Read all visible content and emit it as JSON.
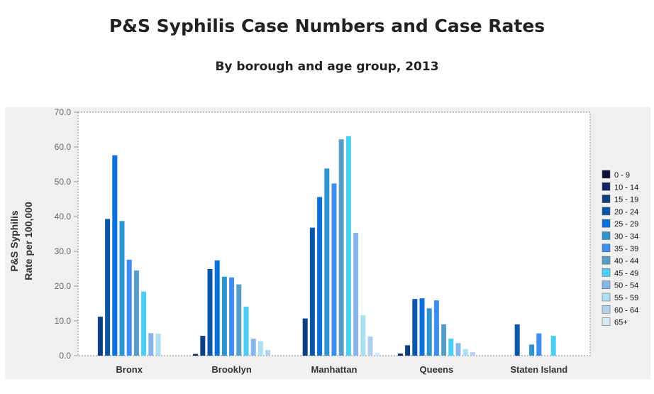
{
  "title": "P&S Syphilis Case Numbers and Case Rates",
  "subtitle": "By borough and age group, 2013",
  "chart_data": {
    "type": "bar",
    "title": "P&S Syphilis Case Numbers and Case Rates",
    "subtitle": "By borough and age group, 2013",
    "xlabel": "",
    "ylabel_lines": [
      "P&S Syphilis",
      "Rate per 100,000"
    ],
    "ylim": [
      0,
      70
    ],
    "yticks": [
      "0.0",
      "10.0",
      "20.0",
      "30.0",
      "40.0",
      "50.0",
      "60.0",
      "70.0"
    ],
    "grid": false,
    "legend_position": "right",
    "categories": [
      "Bronx",
      "Brooklyn",
      "Manhattan",
      "Queens",
      "Staten Island"
    ],
    "series": [
      {
        "name": "0 - 9",
        "color": "#0b1238",
        "values": [
          0,
          0,
          0,
          0,
          0
        ]
      },
      {
        "name": "10 - 14",
        "color": "#0e2466",
        "values": [
          0,
          0.5,
          0,
          0.6,
          0
        ]
      },
      {
        "name": "15 - 19",
        "color": "#0d3f85",
        "values": [
          11.2,
          5.7,
          10.7,
          3.0,
          0
        ]
      },
      {
        "name": "20 - 24",
        "color": "#0a56a8",
        "values": [
          39.3,
          24.9,
          36.8,
          16.3,
          9.0
        ]
      },
      {
        "name": "25 - 29",
        "color": "#0b70dc",
        "values": [
          57.6,
          27.4,
          45.6,
          16.5,
          0
        ]
      },
      {
        "name": "30 - 34",
        "color": "#2d94cf",
        "values": [
          38.7,
          22.7,
          53.8,
          13.6,
          3.2
        ]
      },
      {
        "name": "35 - 39",
        "color": "#3d8ef0",
        "values": [
          27.6,
          22.5,
          49.5,
          15.9,
          6.4
        ]
      },
      {
        "name": "40 - 44",
        "color": "#579ec6",
        "values": [
          24.5,
          20.5,
          62.2,
          9.0,
          0
        ]
      },
      {
        "name": "45 - 49",
        "color": "#4dcef4",
        "values": [
          18.4,
          14.1,
          63.1,
          4.9,
          5.7
        ]
      },
      {
        "name": "50 - 54",
        "color": "#88b5ec",
        "values": [
          6.5,
          4.9,
          35.3,
          3.6,
          0
        ]
      },
      {
        "name": "55 - 59",
        "color": "#aedff0",
        "values": [
          6.3,
          4.2,
          11.6,
          1.9,
          0
        ]
      },
      {
        "name": "60 - 64",
        "color": "#b0d0ee",
        "values": [
          0,
          1.6,
          5.5,
          1.0,
          0
        ]
      },
      {
        "name": "65+",
        "color": "#d4e9f3",
        "values": [
          0,
          0,
          0.8,
          0,
          0
        ]
      }
    ]
  }
}
